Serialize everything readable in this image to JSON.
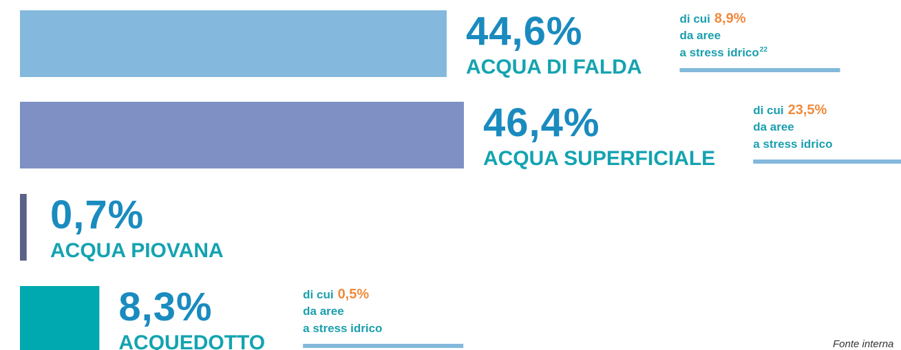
{
  "chart_data": {
    "type": "bar",
    "orientation": "horizontal",
    "categories": [
      "ACQUA DI FALDA",
      "ACQUA SUPERFICIALE",
      "ACQUA PIOVANA",
      "ACQUEDOTTO"
    ],
    "values": [
      44.6,
      46.4,
      0.7,
      8.3
    ],
    "value_labels": [
      "44,6%",
      "46,4%",
      "0,7%",
      "8,3%"
    ],
    "colors": [
      "#84b8dc",
      "#7e90c4",
      "#5a6287",
      "#00a8b0"
    ],
    "stress_values": [
      8.9,
      23.5,
      null,
      0.5
    ],
    "stress_labels": [
      "8,9%",
      "23,5%",
      null,
      "0,5%"
    ],
    "stress_refs": [
      "22",
      null,
      null,
      null
    ],
    "note_prefix": "di cui",
    "note_lines": [
      "da aree",
      "a stress idrico"
    ],
    "source": "Fonte interna"
  }
}
